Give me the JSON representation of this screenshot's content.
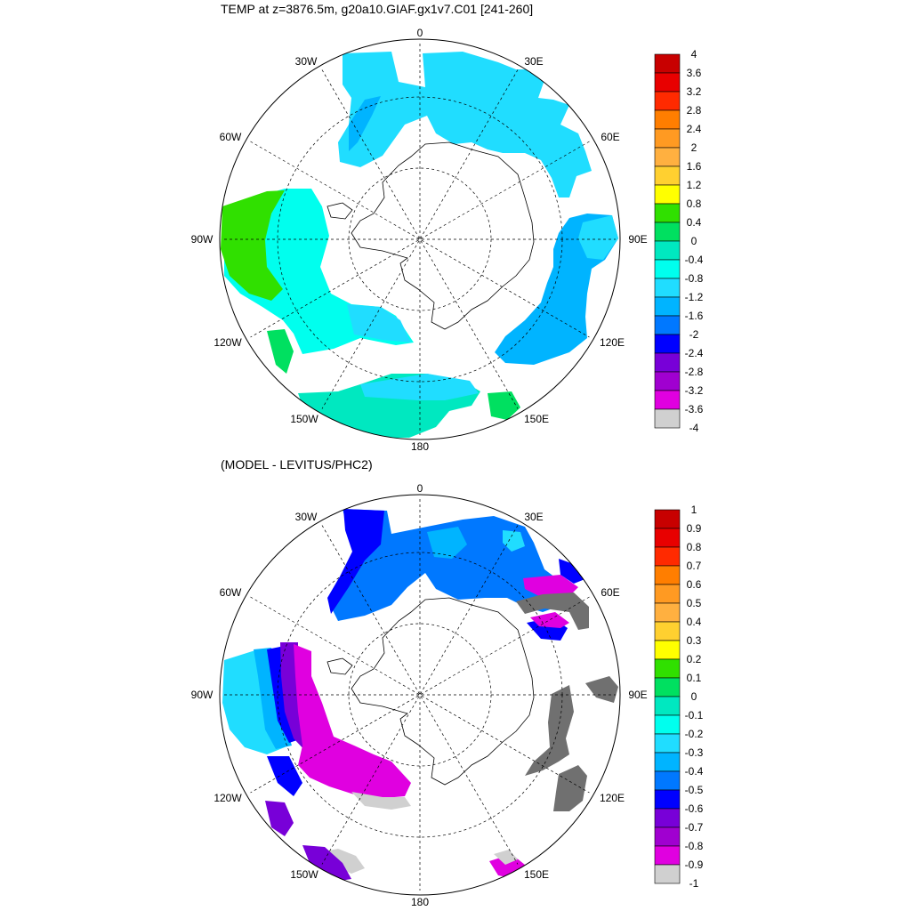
{
  "top_panel": {
    "title": "TEMP at z=3876.5m, g20a10.GIAF.gx1v7.C01 [241-260]",
    "lon_labels": [
      "0",
      "30E",
      "60E",
      "90E",
      "120E",
      "150E",
      "180",
      "150W",
      "120W",
      "90W",
      "60W",
      "30W"
    ],
    "colorbar": {
      "levels": [
        "4",
        "3.6",
        "3.2",
        "2.8",
        "2.4",
        "2",
        "1.6",
        "1.2",
        "0.8",
        "0.4",
        "0",
        "-0.4",
        "-0.8",
        "-1.2",
        "-1.6",
        "-2",
        "-2.4",
        "-2.8",
        "-3.2",
        "-3.6",
        "-4"
      ],
      "colors": [
        "#c80000",
        "#e80000",
        "#ff2a00",
        "#ff7e00",
        "#ff9a22",
        "#ffb040",
        "#ffd030",
        "#ffff00",
        "#30e000",
        "#00e060",
        "#00e8c0",
        "#00ffee",
        "#20ddff",
        "#00b4ff",
        "#0078ff",
        "#0000ff",
        "#7800d8",
        "#a000d0",
        "#e000e0",
        "#d0d0d0"
      ]
    }
  },
  "bottom_panel": {
    "title": "(MODEL - LEVITUS/PHC2)",
    "lon_labels": [
      "0",
      "30E",
      "60E",
      "90E",
      "120E",
      "150E",
      "180",
      "150W",
      "120W",
      "90W",
      "60W",
      "30W"
    ],
    "colorbar": {
      "levels": [
        "1",
        "0.9",
        "0.8",
        "0.7",
        "0.6",
        "0.5",
        "0.4",
        "0.3",
        "0.2",
        "0.1",
        "0",
        "-0.1",
        "-0.2",
        "-0.3",
        "-0.4",
        "-0.5",
        "-0.6",
        "-0.7",
        "-0.8",
        "-0.9",
        "-1"
      ],
      "colors": [
        "#c80000",
        "#e80000",
        "#ff2a00",
        "#ff7e00",
        "#ff9a22",
        "#ffb040",
        "#ffd030",
        "#ffff00",
        "#30e000",
        "#00e060",
        "#00e8c0",
        "#00ffee",
        "#20ddff",
        "#00b4ff",
        "#0078ff",
        "#0000ff",
        "#7800d8",
        "#a000d0",
        "#e000e0",
        "#d0d0d0"
      ]
    }
  }
}
